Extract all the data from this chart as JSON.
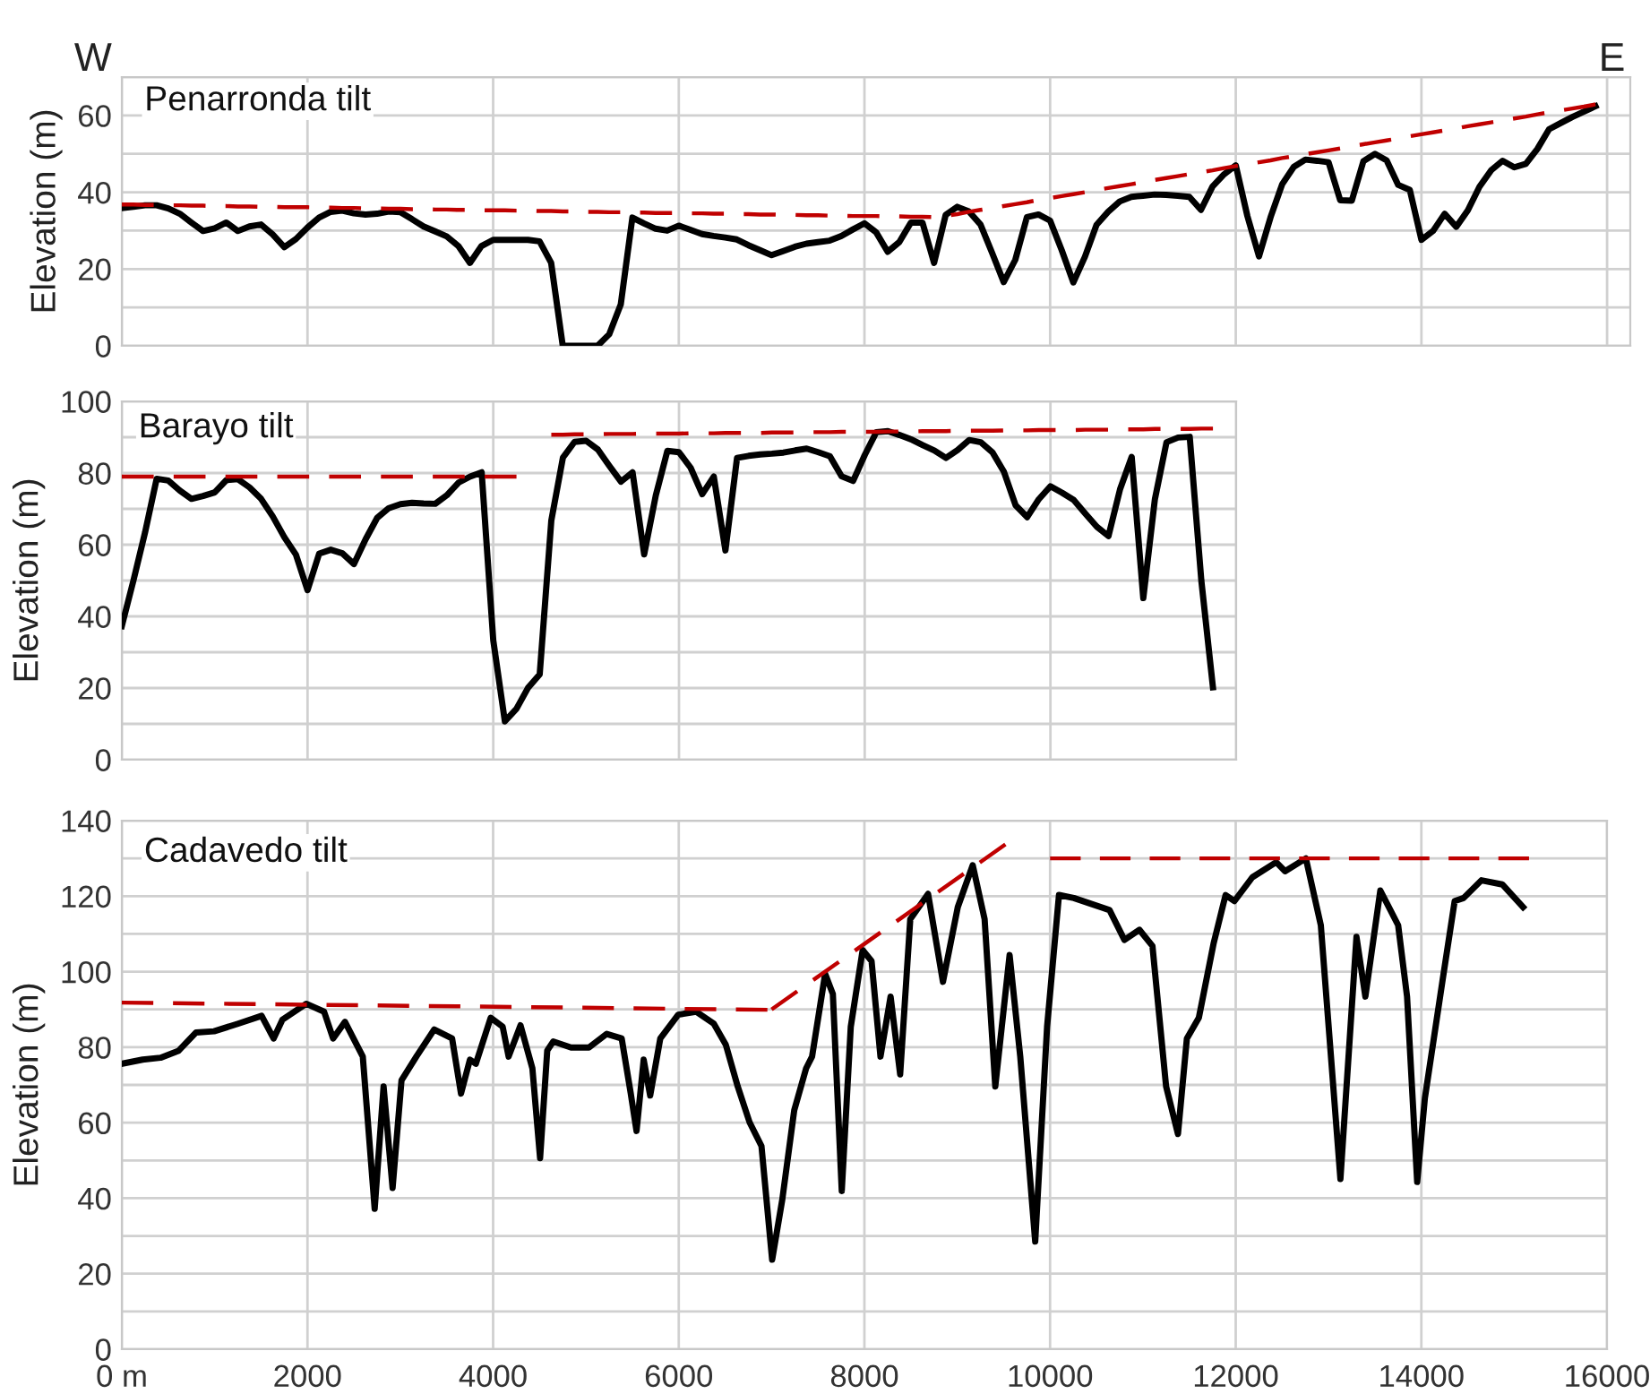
{
  "chart_data": [
    {
      "type": "line",
      "title": "Penarronda tilt",
      "ylabel": "Elevation (m)",
      "annotations": [
        "W",
        "E"
      ],
      "ylim": [
        0,
        70
      ],
      "categories": [
        null,
        null,
        null,
        null,
        null,
        null,
        null,
        null,
        null,
        null,
        null,
        null,
        null,
        null,
        null,
        null,
        null,
        null,
        null,
        null,
        null,
        null,
        null,
        null,
        null,
        null,
        null,
        null,
        null,
        null,
        null,
        null,
        null,
        null,
        null,
        null,
        null,
        null,
        null,
        null,
        null,
        null,
        null,
        null,
        null,
        null,
        null,
        null,
        null,
        null,
        null,
        null,
        null,
        null,
        null,
        null,
        null,
        null,
        null,
        null,
        null,
        null,
        null,
        null,
        null,
        null,
        null,
        null,
        null,
        null,
        null,
        null,
        null,
        null,
        null,
        null,
        null,
        null,
        null,
        null,
        null,
        null,
        null,
        null,
        null,
        null,
        null,
        null,
        null,
        null,
        null,
        null,
        null,
        null,
        null,
        null,
        null,
        null,
        null,
        null,
        null,
        null,
        null,
        null,
        null,
        null,
        null,
        null,
        null,
        null,
        null,
        null,
        null,
        null,
        null,
        null,
        null,
        null,
        null,
        null,
        null,
        null,
        null,
        null,
        null,
        null,
        null,
        null,
        null,
        null,
        null
      ],
      "yticks": [
        0,
        {
          "value": 10,
          "label": null
        },
        20,
        {
          "value": 30,
          "label": null
        },
        40,
        {
          "value": 50,
          "label": null
        },
        60,
        {
          "value": 70,
          "label": null
        }
      ],
      "grid": true,
      "tick_labels": "y",
      "series": [
        {
          "color": "#000000",
          "line_style": "solid",
          "values": [
            35.9,
            36.2,
            36.6,
            36.6,
            35.8,
            34.4,
            32.1,
            29.9,
            30.6,
            32.1,
            29.9,
            31.1,
            31.6,
            29,
            25.7,
            27.8,
            30.8,
            33.4,
            34.9,
            35.2,
            34.5,
            34.2,
            34.4,
            35,
            34.8,
            33,
            31.1,
            29.8,
            28.5,
            26,
            21.6,
            26,
            27.6,
            27.6,
            27.6,
            27.6,
            27.2,
            21.6,
            0,
            0,
            0,
            0,
            3,
            10.8,
            33.4,
            31.9,
            30.5,
            30,
            31.3,
            30.2,
            29.1,
            28.6,
            28.2,
            27.7,
            26.2,
            24.9,
            23.6,
            24.7,
            25.8,
            26.6,
            27,
            27.4,
            28.6,
            30.3,
            31.9,
            29.6,
            24.5,
            27,
            32.1,
            32.1,
            21.6,
            34.1,
            36.2,
            35,
            31.6,
            24.2,
            16.6,
            22.4,
            33.5,
            34.2,
            32.6,
            24.9,
            16.5,
            23.2,
            31.5,
            34.9,
            37.6,
            38.8,
            39.1,
            39.4,
            39.3,
            39.1,
            38.8,
            35.4,
            41.5,
            44.7,
            47,
            33.8,
            23.3,
            33.5,
            42.1,
            46.6,
            48.5,
            48.2,
            47.8,
            37.9,
            37.8,
            48.1,
            50,
            48.3,
            41.9,
            40.6,
            27.6,
            29.9,
            34.4,
            31,
            35.3,
            41.4,
            45.7,
            48.2,
            46.5,
            47.4,
            51.3,
            56.4,
            58,
            59.6,
            61,
            62.4,
            null,
            null,
            null
          ]
        },
        {
          "color": "#c00000",
          "line_style": "dashed",
          "values": [
            36.8,
            36.8,
            36.7,
            36.7,
            36.6,
            36.6,
            36.5,
            36.5,
            36.4,
            36.4,
            36.3,
            36.3,
            36.2,
            36.2,
            36.1,
            36.1,
            36.1,
            36,
            36,
            35.9,
            35.9,
            35.8,
            35.8,
            35.7,
            35.7,
            35.6,
            35.6,
            35.5,
            35.5,
            35.4,
            35.4,
            35.3,
            35.3,
            35.3,
            35.2,
            35.2,
            35.1,
            35.1,
            35,
            35,
            34.9,
            34.9,
            34.8,
            34.8,
            34.7,
            34.7,
            34.6,
            34.6,
            34.6,
            34.5,
            34.5,
            34.4,
            34.4,
            34.3,
            34.3,
            34.2,
            34.2,
            34.1,
            34.1,
            34,
            34,
            33.9,
            33.9,
            33.8,
            33.8,
            33.8,
            33.7,
            33.7,
            33.6,
            33.6,
            33.5,
            33.8,
            34.3,
            34.9,
            35.4,
            35.9,
            36.4,
            36.9,
            37.4,
            38,
            38.5,
            39,
            39.5,
            40,
            40.6,
            41.1,
            41.6,
            42.1,
            42.6,
            43.2,
            43.7,
            44.2,
            44.7,
            45.2,
            45.7,
            46.3,
            46.8,
            47.3,
            47.8,
            48.3,
            48.9,
            49.4,
            49.9,
            50.4,
            50.9,
            51.4,
            52,
            52.5,
            53,
            53.5,
            54,
            54.6,
            55.1,
            55.6,
            56.1,
            56.6,
            57.2,
            57.7,
            58.2,
            58.7,
            59.2,
            59.7,
            60.3,
            60.8,
            61.3,
            61.8,
            62.3,
            62.9,
            null,
            null,
            null
          ]
        }
      ]
    },
    {
      "type": "line",
      "title": "Barayo tilt",
      "ylabel": "Elevation (m)",
      "ylim": [
        0,
        100
      ],
      "categories": [
        null,
        null,
        null,
        null,
        null,
        null,
        null,
        null,
        null,
        null,
        null,
        null,
        null,
        null,
        null,
        null,
        null,
        null,
        null,
        null,
        null,
        null,
        null,
        null,
        null,
        null,
        null,
        null,
        null,
        null,
        null,
        null,
        null,
        null,
        null,
        null,
        null,
        null,
        null,
        null,
        null,
        null,
        null,
        null,
        null,
        null,
        null,
        null,
        null,
        null,
        null,
        null,
        null,
        null,
        null,
        null,
        null,
        null,
        null,
        null,
        null,
        null,
        null,
        null,
        null,
        null,
        null,
        null,
        null,
        null,
        null,
        null,
        null,
        null,
        null,
        null,
        null,
        null,
        null,
        null,
        null,
        null,
        null,
        null,
        null,
        null,
        null,
        null,
        null,
        null,
        null,
        null,
        null,
        null,
        null,
        null,
        null
      ],
      "yticks": [
        0,
        {
          "value": 10,
          "label": null
        },
        20,
        {
          "value": 30,
          "label": null
        },
        40,
        {
          "value": 50,
          "label": null
        },
        60,
        {
          "value": 70,
          "label": null
        },
        80,
        {
          "value": 90,
          "label": null
        },
        100
      ],
      "grid": true,
      "tick_labels": "y",
      "series": [
        {
          "color": "#000000",
          "line_style": "solid",
          "values": [
            37.3,
            50,
            63.4,
            78.4,
            77.9,
            75.1,
            72.8,
            73.6,
            74.6,
            78,
            78.3,
            76,
            72.8,
            67.9,
            62.1,
            57.2,
            47.3,
            57.5,
            58.6,
            57.6,
            54.6,
            61.5,
            67.5,
            70.2,
            71.3,
            71.7,
            71.5,
            71.4,
            73.8,
            77.3,
            79,
            80.2,
            33.3,
            10.7,
            14.2,
            20.1,
            23.8,
            66.7,
            84.3,
            88.7,
            89,
            86.6,
            82,
            77.6,
            80.2,
            57.3,
            73.7,
            86.2,
            85.8,
            81.5,
            74.1,
            79,
            58.4,
            84.2,
            84.8,
            85.2,
            85.4,
            85.7,
            86.3,
            86.8,
            85.8,
            84.7,
            79.1,
            77.8,
            85,
            91.4,
            91.7,
            90.6,
            89.4,
            87.8,
            86.3,
            84.2,
            86.4,
            89.2,
            88.6,
            85.8,
            80.3,
            71,
            67.7,
            72.7,
            76.3,
            74.5,
            72.5,
            68.7,
            65,
            62.4,
            75.5,
            84.5,
            45.1,
            72.7,
            88.6,
            89.9,
            90.1,
            50,
            20.2,
            null,
            null
          ]
        },
        {
          "color": "#c00000",
          "line_style": "dashed",
          "values": [
            79,
            79,
            79,
            79,
            79,
            79,
            79,
            79,
            79,
            79,
            79,
            79,
            79,
            79,
            79,
            79,
            79,
            79,
            79,
            79,
            79,
            79,
            79,
            79,
            79,
            79,
            79,
            79,
            79,
            79,
            79,
            79,
            79,
            79,
            79,
            null,
            null,
            null,
            null,
            null,
            null,
            null,
            null,
            null,
            null,
            null,
            null,
            null,
            null,
            null,
            null,
            null,
            null,
            null,
            null,
            null,
            null,
            null,
            null,
            null,
            null,
            null,
            null,
            null,
            null,
            null,
            null,
            null,
            null,
            null,
            null,
            null,
            null,
            null,
            null,
            null,
            null,
            null,
            null,
            null,
            null,
            null,
            null,
            null,
            null,
            null,
            null,
            null,
            null,
            null,
            null,
            null,
            null,
            null,
            null,
            null,
            null
          ]
        },
        {
          "color": "#c00000",
          "line_style": "dashed",
          "values": [
            null,
            null,
            null,
            null,
            null,
            null,
            null,
            null,
            null,
            null,
            null,
            null,
            null,
            null,
            null,
            null,
            null,
            null,
            null,
            null,
            null,
            null,
            null,
            null,
            null,
            null,
            null,
            null,
            null,
            null,
            null,
            null,
            null,
            null,
            null,
            null,
            null,
            90.7,
            90.7,
            90.8,
            90.8,
            90.8,
            90.9,
            90.9,
            90.9,
            91,
            91,
            91,
            91,
            91.1,
            91.1,
            91.1,
            91.2,
            91.2,
            91.2,
            91.2,
            91.3,
            91.3,
            91.3,
            91.4,
            91.4,
            91.4,
            91.5,
            91.5,
            91.5,
            91.5,
            91.6,
            91.6,
            91.6,
            91.7,
            91.7,
            91.7,
            91.8,
            91.8,
            91.8,
            91.8,
            91.9,
            91.9,
            91.9,
            92,
            92,
            92,
            92,
            92.1,
            92.1,
            92.1,
            92.2,
            92.2,
            92.2,
            92.3,
            92.3,
            92.3,
            92.3,
            92.4,
            92.4,
            null,
            null
          ]
        }
      ]
    },
    {
      "type": "line",
      "title": "Cadavedo tilt",
      "ylabel": "Elevation (m)",
      "xlim": [
        0,
        16000
      ],
      "ylim": [
        0,
        140
      ],
      "xticks": [
        {
          "value": 0,
          "label": "0 m"
        },
        2000,
        4000,
        6000,
        8000,
        10000,
        12000,
        14000,
        16000
      ],
      "yticks": [
        0,
        {
          "value": 10,
          "label": null
        },
        20,
        {
          "value": 30,
          "label": null
        },
        40,
        {
          "value": 50,
          "label": null
        },
        60,
        {
          "value": 70,
          "label": null
        },
        80,
        {
          "value": 90,
          "label": null
        },
        100,
        {
          "value": 110,
          "label": null
        },
        120,
        {
          "value": 130,
          "label": null
        },
        140
      ],
      "grid": true,
      "series": [
        {
          "color": "#000000",
          "line_style": "solid",
          "x": [
            0,
            224,
            417,
            609,
            800,
            994,
            1250,
            1506,
            1635,
            1731,
            1987,
            2179,
            2276,
            2404,
            2596,
            2724,
            2820,
            2917,
            3013,
            3173,
            3365,
            3558,
            3654,
            3750,
            3814,
            3974,
            4103,
            4167,
            4295,
            4423,
            4506,
            4583,
            4647,
            4840,
            5032,
            5224,
            5385,
            5481,
            5545,
            5622,
            5692,
            5801,
            5994,
            6186,
            6378,
            6506,
            6635,
            6763,
            6891,
            7006,
            7115,
            7244,
            7372,
            7436,
            7577,
            7660,
            7756,
            7853,
            7981,
            8077,
            8173,
            8282,
            8385,
            8494,
            8686,
            8846,
            9006,
            9167,
            9295,
            9410,
            9564,
            9679,
            9840,
            9968,
            10096,
            10256,
            10449,
            10641,
            10801,
            10962,
            11103,
            11250,
            11378,
            11474,
            11603,
            11763,
            11891,
            11987,
            12179,
            12436,
            12532,
            12756,
            12917,
            13128,
            13301,
            13397,
            13558,
            13750,
            13846,
            13955,
            14038,
            14231,
            14359,
            14455,
            14647,
            14872,
            15096
          ],
          "values": [
            75.6,
            76.7,
            77.2,
            79,
            83.9,
            84.2,
            86.2,
            88.3,
            82.3,
            87.3,
            91.5,
            89.4,
            82.3,
            86.7,
            77.5,
            37.2,
            69.6,
            42.7,
            71.2,
            77.5,
            84.7,
            82.3,
            67.7,
            76.7,
            75.6,
            87.8,
            85.4,
            77.5,
            85.8,
            74.4,
            50.6,
            79.1,
            81.5,
            79.9,
            79.9,
            83.5,
            82.3,
            68,
            57.8,
            76.7,
            67.2,
            82.3,
            88.6,
            89.4,
            86.2,
            80.7,
            69.6,
            60.1,
            53.8,
            23.7,
            39.6,
            63.3,
            74.4,
            77.5,
            99.4,
            94.1,
            41.9,
            85.4,
            105.7,
            102.8,
            77.5,
            93.4,
            72.8,
            113.9,
            120.6,
            97.3,
            117.1,
            128.2,
            113.9,
            69.6,
            104.4,
            77.5,
            28.5,
            85.4,
            120.3,
            119.5,
            117.9,
            116.3,
            108.4,
            111.1,
            106.8,
            69.6,
            57,
            82.3,
            87.8,
            107.6,
            120.3,
            118.7,
            125,
            129,
            126.6,
            130,
            112.3,
            45.1,
            109.2,
            93.4,
            121.5,
            112.3,
            93.4,
            44.3,
            66.5,
            98.1,
            118.7,
            119.5,
            124.2,
            123.1,
            117.1
          ]
        },
        {
          "color": "#c00000",
          "line_style": "dashed",
          "x": [
            0,
            6955
          ],
          "values": [
            91.8,
            89.9
          ]
        },
        {
          "color": "#c00000",
          "line_style": "dashed",
          "x": [
            7000,
            9519
          ],
          "values": [
            90,
            133.7
          ]
        },
        {
          "color": "#c00000",
          "line_style": "dashed",
          "x": [
            10000,
            15160
          ],
          "values": [
            130,
            130
          ]
        }
      ]
    }
  ]
}
